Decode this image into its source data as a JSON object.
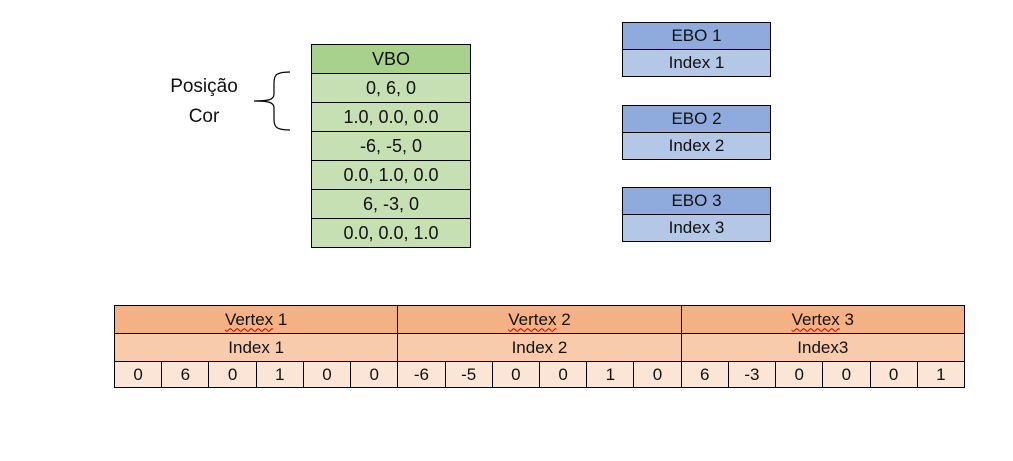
{
  "labels": {
    "posicao": "Posição",
    "cor": "Cor"
  },
  "vbo": {
    "header": "VBO",
    "rows": [
      "0, 6, 0",
      "1.0, 0.0, 0.0",
      "-6, -5, 0",
      "0.0, 1.0, 0.0",
      "6, -3, 0",
      "0.0, 0.0, 1.0"
    ]
  },
  "ebos": [
    {
      "header": "EBO 1",
      "index": "Index 1"
    },
    {
      "header": "EBO 2",
      "index": "Index 2"
    },
    {
      "header": "EBO 3",
      "index": "Index 3"
    }
  ],
  "vertices": [
    {
      "word": "Vertex",
      "num": "1",
      "index": "Index 1",
      "values": [
        "0",
        "6",
        "0",
        "1",
        "0",
        "0"
      ]
    },
    {
      "word": "Vertex",
      "num": "2",
      "index": "Index 2",
      "values": [
        "-6",
        "-5",
        "0",
        "0",
        "1",
        "0"
      ]
    },
    {
      "word": "Vertex",
      "num": "3",
      "index": "Index3",
      "values": [
        "6",
        "-3",
        "0",
        "0",
        "0",
        "1"
      ]
    }
  ],
  "colors": {
    "vbo_header": "#a9d18e",
    "vbo_cell": "#c6e0b4",
    "ebo_header": "#8faadc",
    "ebo_cell": "#b4c7e7",
    "vertex_header": "#f4b183",
    "index_row": "#f8cbad",
    "value_row": "#fbe5d6"
  }
}
